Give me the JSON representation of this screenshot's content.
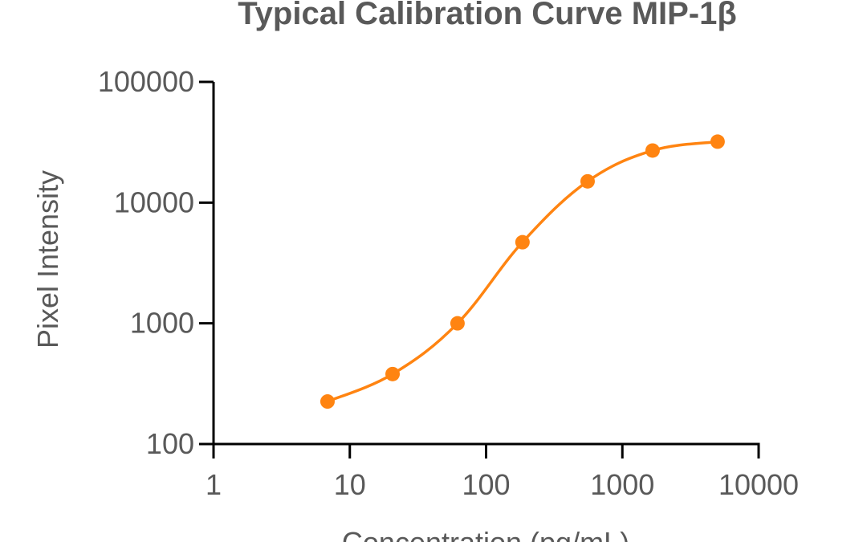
{
  "chart_data": {
    "type": "line",
    "title": "Typical Calibration Curve MIP-1β",
    "xlabel": "Concentration (pg/mL)",
    "ylabel": "Pixel Intensity",
    "xscale": "log",
    "yscale": "log",
    "xlim": [
      1,
      10000
    ],
    "ylim": [
      100,
      100000
    ],
    "xticks": [
      "1",
      "10",
      "100",
      "1000",
      "10000"
    ],
    "yticks": [
      "100",
      "1000",
      "10000",
      "100000"
    ],
    "grid": false,
    "color": "#FF8411",
    "series": [
      {
        "x": [
          6.86,
          20.6,
          61.7,
          185,
          556,
          1667,
          5000
        ],
        "y": [
          225,
          380,
          1000,
          4700,
          15000,
          27000,
          32000
        ]
      }
    ]
  }
}
